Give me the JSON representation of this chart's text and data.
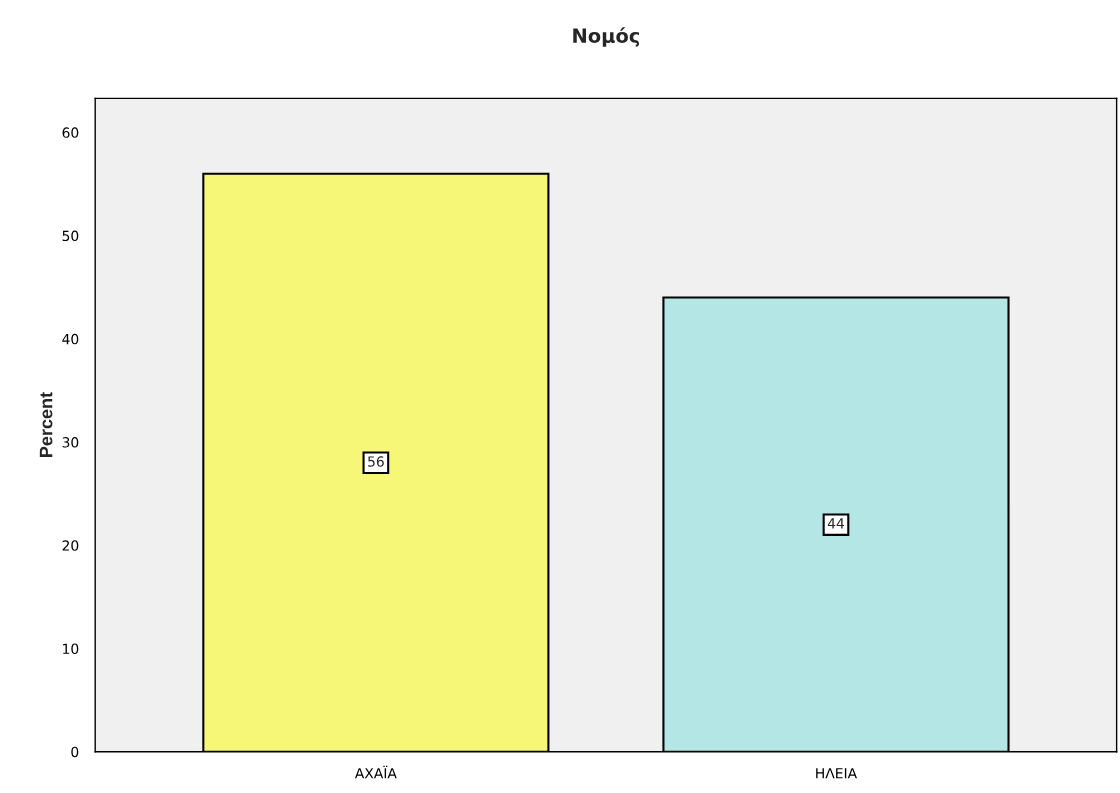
{
  "chart_data": {
    "type": "bar",
    "title": "Νομός",
    "ylabel": "Percent",
    "categories": [
      "ΑΧΑΪΑ",
      "ΗΛΕΙΑ"
    ],
    "values": [
      56,
      44
    ],
    "colors": [
      "#f7f777",
      "#b4e6e6"
    ],
    "ylim": [
      0,
      63.3
    ],
    "yticks": [
      0,
      10,
      20,
      30,
      40,
      50,
      60
    ],
    "data_labels": true,
    "grid": false,
    "legend": false
  }
}
